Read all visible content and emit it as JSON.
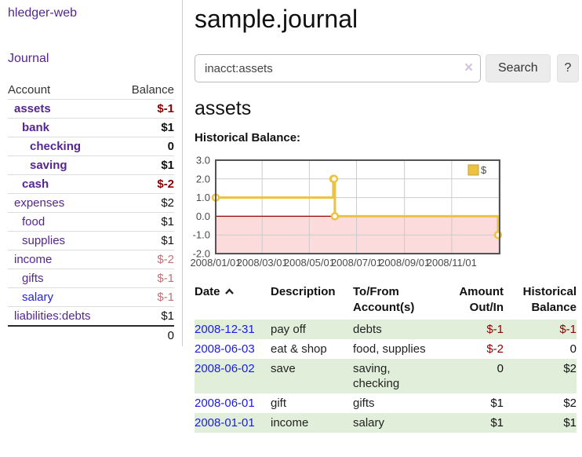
{
  "app": {
    "brand": "hledger-web",
    "nav_journal": "Journal"
  },
  "sidebar": {
    "header": {
      "account": "Account",
      "balance": "Balance"
    },
    "accounts": [
      {
        "name": "assets",
        "balance": "$-1",
        "level": 1
      },
      {
        "name": "bank",
        "balance": "$1",
        "level": 2
      },
      {
        "name": "checking",
        "balance": "0",
        "level": 3
      },
      {
        "name": "saving",
        "balance": "$1",
        "level": 3
      },
      {
        "name": "cash",
        "balance": "$-2",
        "level": 2
      },
      {
        "name": "expenses",
        "balance": "$2",
        "level": 1
      },
      {
        "name": "food",
        "balance": "$1",
        "level": 2
      },
      {
        "name": "supplies",
        "balance": "$1",
        "level": 2
      },
      {
        "name": "income",
        "balance": "$-2",
        "level": 1
      },
      {
        "name": "gifts",
        "balance": "$-1",
        "level": 2
      },
      {
        "name": "salary",
        "balance": "$-1",
        "level": 2
      },
      {
        "name": "liabilities:debts",
        "balance": "$1",
        "level": 1
      }
    ],
    "total": "0"
  },
  "main": {
    "title": "sample.journal",
    "search": {
      "value": "inacct:assets",
      "clear_label": "×",
      "search_button": "Search",
      "help_button": "?"
    },
    "account_heading": "assets",
    "chart_heading": "Historical Balance:"
  },
  "chart_data": {
    "type": "line",
    "title": "Historical Balance:",
    "xlim": [
      "2008-01-01",
      "2009-01-02"
    ],
    "ylim": [
      -2,
      3
    ],
    "y_ticks": [
      3,
      2,
      1,
      0,
      -1,
      -2
    ],
    "x_ticks": [
      "2008/01/01",
      "2008/03/01",
      "2008/05/01",
      "2008/07/01",
      "2008/09/01",
      "2008/11/01"
    ],
    "x_tick_dates": [
      "2008-01-01",
      "2008-03-01",
      "2008-05-01",
      "2008-07-01",
      "2008-09-01",
      "2008-11-01"
    ],
    "x_grid": [
      "2008-03-01",
      "2008-05-01",
      "2008-07-01",
      "2008-09-01",
      "2008-11-01",
      "2009-01-01"
    ],
    "series": [
      {
        "name": "$",
        "color": "#edc240",
        "steps": true,
        "points": [
          [
            "2008-01-01",
            1
          ],
          [
            "2008-06-01",
            2
          ],
          [
            "2008-06-02",
            2
          ],
          [
            "2008-06-03",
            0
          ],
          [
            "2008-12-31",
            -1
          ]
        ]
      }
    ],
    "legend_position": "top-right",
    "grid": true,
    "negative_region_color": "#fbdbdb",
    "zero_line_color": "#990000"
  },
  "register": {
    "columns": [
      "Date",
      "Description",
      "To/From\nAccount(s)",
      "Amount\nOut/In",
      "Historical\nBalance"
    ],
    "rows": [
      {
        "date": "2008-12-31",
        "description": "pay off",
        "accounts": "debts",
        "amount": "$-1",
        "balance": "$-1"
      },
      {
        "date": "2008-06-03",
        "description": "eat & shop",
        "accounts": "food, supplies",
        "amount": "$-2",
        "balance": "0"
      },
      {
        "date": "2008-06-02",
        "description": "save",
        "accounts": "saving,\nchecking",
        "amount": "0",
        "balance": "$2"
      },
      {
        "date": "2008-06-01",
        "description": "gift",
        "accounts": "gifts",
        "amount": "$1",
        "balance": "$2"
      },
      {
        "date": "2008-01-01",
        "description": "income",
        "accounts": "salary",
        "amount": "$1",
        "balance": "$1"
      }
    ]
  },
  "colors": {
    "link_purple": "#55268f",
    "link_blue": "#1a1aee",
    "negative_dark": "#8b0000",
    "negative_rose": "#c2707c",
    "stripe_green": "#e1efda",
    "series_gold": "#edc240",
    "chart_border": "#545454"
  }
}
